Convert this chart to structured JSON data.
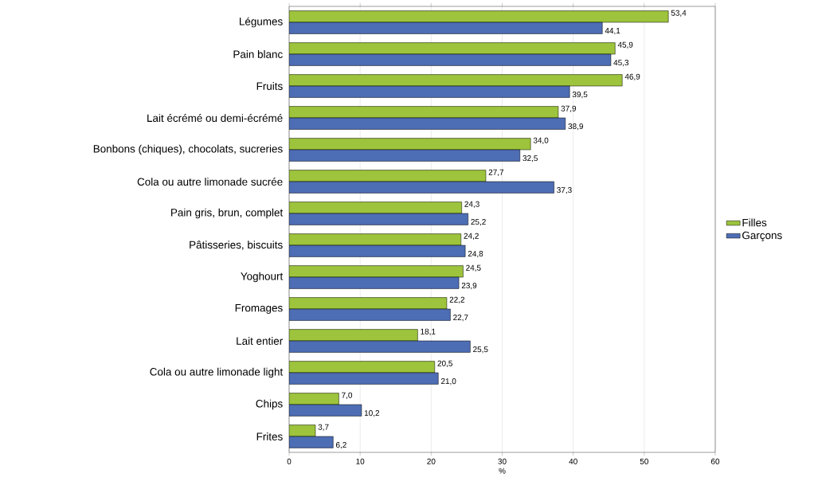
{
  "chart_data": {
    "type": "bar",
    "orientation": "horizontal",
    "xlabel": "%",
    "categories": [
      "Légumes",
      "Pain blanc",
      "Fruits",
      "Lait écrémé ou demi-écrémé",
      "Bonbons (chiques), chocolats, sucreries",
      "Cola ou autre limonade sucrée",
      "Pain gris, brun, complet",
      "Pâtisseries, biscuits",
      "Yoghourt",
      "Fromages",
      "Lait entier",
      "Cola ou autre limonade light",
      "Chips",
      "Frites"
    ],
    "series": [
      {
        "name": "Filles",
        "color": "#9dc43c",
        "values": [
          53.4,
          45.9,
          46.9,
          37.9,
          34.0,
          27.7,
          24.3,
          24.2,
          24.5,
          22.2,
          18.1,
          20.5,
          7.0,
          3.7
        ],
        "value_labels": [
          "53,4",
          "45,9",
          "46,9",
          "37,9",
          "34,0",
          "27,7",
          "24,3",
          "24,2",
          "24,5",
          "22,2",
          "18,1",
          "20,5",
          "7,0",
          "3,7"
        ]
      },
      {
        "name": "Garçons",
        "color": "#4d6db4",
        "values": [
          44.1,
          45.3,
          39.5,
          38.9,
          32.5,
          37.3,
          25.2,
          24.8,
          23.9,
          22.7,
          25.5,
          21.0,
          10.2,
          6.2
        ],
        "value_labels": [
          "44,1",
          "45,3",
          "39,5",
          "38,9",
          "32,5",
          "37,3",
          "25,2",
          "24,8",
          "23,9",
          "22,7",
          "25,5",
          "21,0",
          "10,2",
          "6,2"
        ]
      }
    ],
    "xlim": [
      0,
      60
    ],
    "xticks": [
      0,
      10,
      20,
      30,
      40,
      50,
      60
    ],
    "grid": "x",
    "legend": "right"
  }
}
